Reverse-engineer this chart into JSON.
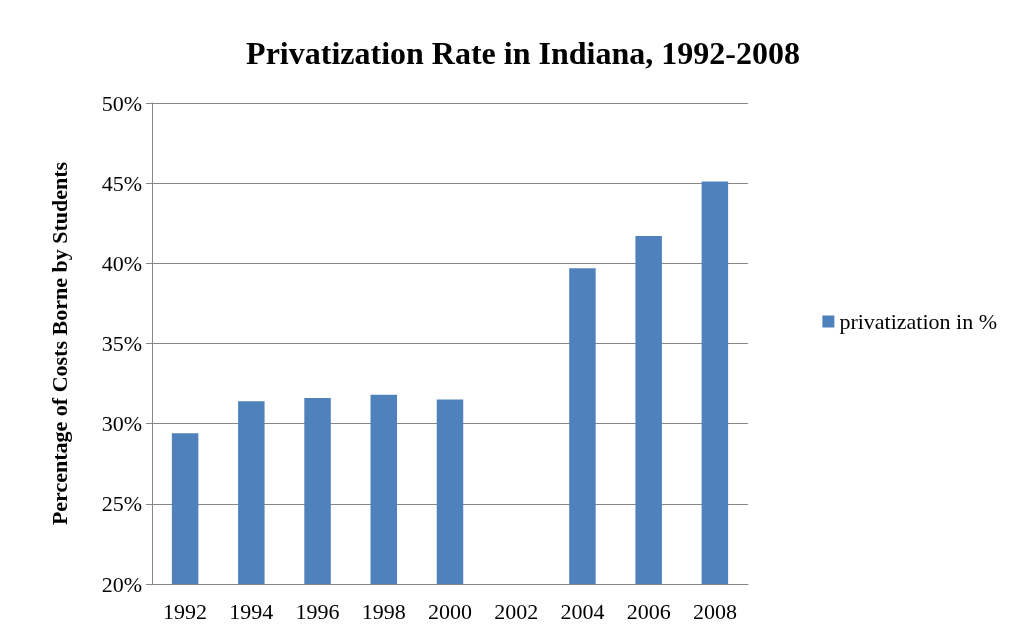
{
  "chart_data": {
    "type": "bar",
    "title": "Privatization Rate in Indiana, 1992-2008",
    "ylabel": "Percentage of Costs Borne by Students",
    "categories": [
      "1992",
      "1994",
      "1996",
      "1998",
      "2000",
      "2002",
      "2004",
      "2006",
      "2008"
    ],
    "series": [
      {
        "name": "privatization in %",
        "color": "#4f81bd",
        "values": [
          29.4,
          31.4,
          31.6,
          31.8,
          31.5,
          null,
          39.7,
          41.7,
          45.1
        ]
      }
    ],
    "ylim": [
      20,
      50
    ],
    "yticks": [
      {
        "value": 20,
        "label": "20%"
      },
      {
        "value": 25,
        "label": "25%"
      },
      {
        "value": 30,
        "label": "30%"
      },
      {
        "value": 35,
        "label": "35%"
      },
      {
        "value": 40,
        "label": "40%"
      },
      {
        "value": 45,
        "label": "45%"
      },
      {
        "value": 50,
        "label": "50%"
      }
    ],
    "grid": "y",
    "legend": "right"
  }
}
